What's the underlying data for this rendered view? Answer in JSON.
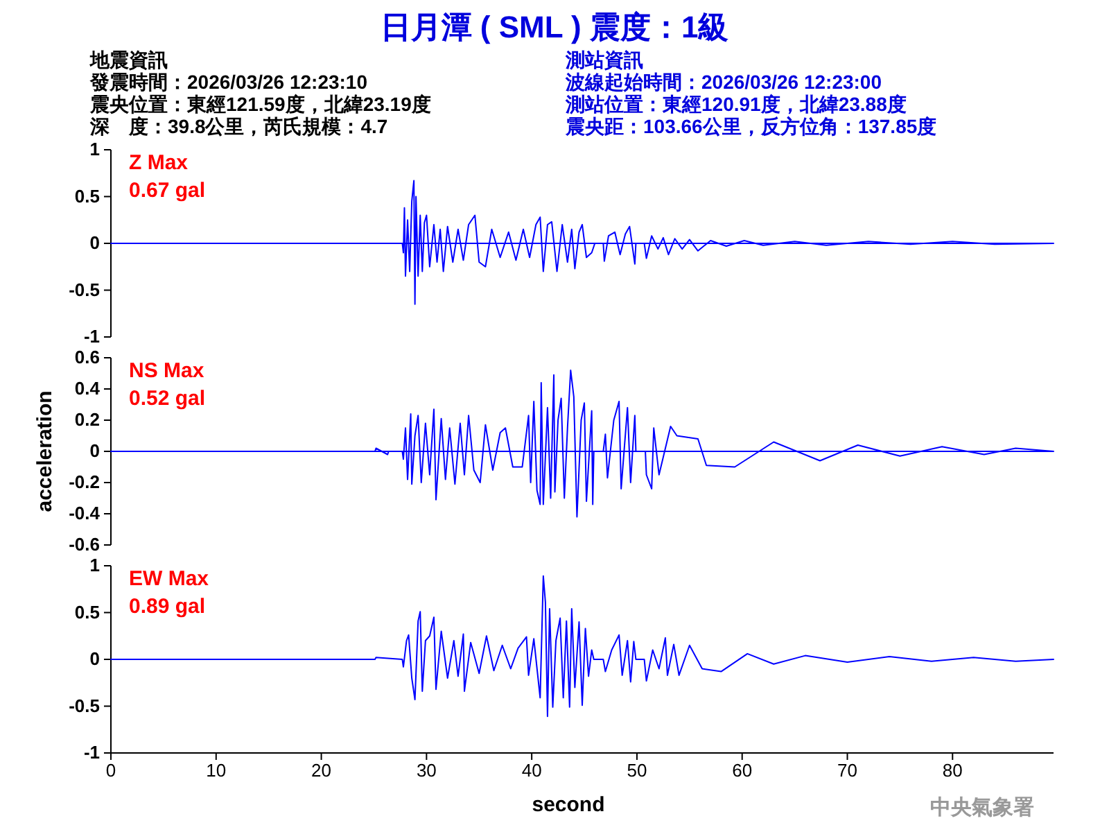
{
  "chart_data": [
    {
      "type": "line",
      "title": "日月潭 ( SML ) 震度：1級",
      "annotations": [
        "Z Max",
        "0.67 gal",
        "地震資訊",
        "發震時間：2026/03/26 12:23:10",
        "震央位置：東經121.59度，北緯23.19度",
        "深　度：39.8公里，芮氏規模：4.7",
        "測站資訊",
        "波線起始時間：2026/03/26 12:23:00",
        "測站位置：東經120.91度，北緯23.88度",
        "震央距：103.66公里，反方位角：137.85度"
      ],
      "xlim": [
        0,
        89.6
      ],
      "ylim": [
        -1,
        1
      ],
      "yticks": [
        -1,
        -0.5,
        0,
        0.5,
        1
      ],
      "tick_labels": "y",
      "ref_lines": [
        {
          "axis": "y",
          "value": 0,
          "color": "#0000ff"
        }
      ],
      "series": [
        {
          "color": "#0000ff",
          "x": [
            0,
            27.7,
            27.8,
            27.9,
            28.0,
            28.2,
            28.4,
            28.6,
            28.8,
            28.9,
            29.0,
            29.2,
            29.4,
            29.6,
            29.8,
            30.0,
            30.3,
            30.7,
            31.0,
            31.3,
            31.6,
            32.0,
            32.5,
            33.0,
            33.5,
            34.0,
            34.6,
            35.0,
            35.6,
            36.2,
            37.0,
            37.8,
            38.5,
            39.2,
            39.8,
            40.4,
            40.8,
            41.1,
            41.5,
            41.9,
            42.4,
            42.9,
            43.4,
            43.8,
            44.1,
            44.5,
            44.8,
            45.2,
            45.7,
            46.0,
            46.8,
            46.9,
            47.3,
            47.9,
            48.4,
            48.9,
            49.3,
            49.8,
            49.9,
            50.7,
            50.9,
            51.4,
            52.0,
            52.5,
            53.0,
            53.6,
            54.3,
            55.0,
            55.8,
            57,
            58.5,
            60.2,
            62,
            65,
            68,
            72,
            76,
            80,
            84,
            89.6
          ],
          "values": [
            0,
            0,
            -0.1,
            0.38,
            -0.35,
            0.25,
            -0.3,
            0.45,
            0.67,
            -0.65,
            0.5,
            -0.35,
            0.3,
            -0.3,
            0.22,
            0.3,
            -0.25,
            0.2,
            -0.2,
            0.15,
            -0.3,
            0.18,
            -0.2,
            0.15,
            -0.18,
            0.2,
            0.3,
            -0.2,
            -0.25,
            0.15,
            -0.15,
            0.12,
            -0.18,
            0.15,
            -0.15,
            0.2,
            0.28,
            -0.3,
            0.2,
            0.23,
            -0.3,
            0.2,
            -0.2,
            0.15,
            -0.27,
            0.12,
            0.2,
            -0.15,
            -0.1,
            0,
            0,
            -0.19,
            0.08,
            0.12,
            -0.12,
            0.1,
            0.18,
            -0.22,
            0,
            0,
            -0.16,
            0.08,
            -0.06,
            0.06,
            -0.12,
            0.05,
            -0.06,
            0.04,
            -0.08,
            0.03,
            -0.03,
            0.03,
            -0.02,
            0.02,
            -0.02,
            0.02,
            -0.01,
            0.02,
            -0.01,
            0
          ]
        }
      ]
    },
    {
      "type": "line",
      "ylabel": "acceleration",
      "annotations": [
        "NS Max",
        "0.52 gal"
      ],
      "xlim": [
        0,
        89.6
      ],
      "ref_lines": [
        {
          "axis": "y",
          "value": 0,
          "color": "#0000ff"
        }
      ],
      "ylim": [
        -0.6,
        0.6
      ],
      "yticks": [
        -0.6,
        -0.4,
        -0.2,
        0,
        0.2,
        0.4,
        0.6
      ],
      "tick_labels": "y",
      "series": [
        {
          "color": "#0000ff",
          "x": [
            0,
            25.1,
            25.2,
            26.3,
            26.4,
            27.7,
            27.8,
            28.0,
            28.2,
            28.5,
            28.6,
            28.9,
            29.2,
            29.5,
            29.9,
            30.3,
            30.7,
            30.9,
            31.4,
            31.8,
            32.2,
            32.7,
            33.2,
            33.6,
            34.0,
            34.5,
            35.1,
            35.6,
            36.3,
            37.0,
            37.5,
            38.2,
            39.1,
            39.7,
            39.9,
            40.2,
            40.5,
            40.8,
            40.9,
            41.1,
            41.5,
            41.8,
            42.1,
            42.2,
            42.5,
            42.8,
            43.1,
            43.4,
            43.7,
            44.0,
            44.3,
            44.7,
            45.0,
            45.2,
            45.7,
            45.8,
            45.9,
            46.8,
            47.0,
            47.2,
            47.8,
            48.3,
            48.5,
            49.1,
            49.4,
            49.8,
            49.9,
            50.8,
            50.9,
            51.4,
            51.6,
            52.1,
            53.2,
            53.8,
            55.8,
            56.6,
            59.3,
            63,
            67.4,
            71,
            75,
            79,
            83,
            86,
            89.6
          ],
          "values": [
            0,
            0,
            0.02,
            -0.02,
            0,
            0,
            -0.05,
            0.15,
            -0.18,
            0.24,
            -0.21,
            0.1,
            0.23,
            -0.2,
            0.18,
            -0.15,
            0.27,
            -0.31,
            0.21,
            -0.18,
            0.15,
            -0.21,
            0.18,
            -0.15,
            0.23,
            -0.12,
            -0.2,
            0.17,
            -0.12,
            0.12,
            0.15,
            -0.1,
            -0.1,
            0.23,
            -0.2,
            0.32,
            -0.25,
            -0.34,
            0.44,
            -0.34,
            0.28,
            -0.3,
            0.49,
            -0.26,
            0.2,
            0.34,
            -0.3,
            0.15,
            0.52,
            0.35,
            -0.42,
            0.2,
            0.31,
            -0.32,
            0.26,
            -0.34,
            0,
            0,
            0.11,
            -0.17,
            0.2,
            0.32,
            -0.24,
            0.28,
            -0.2,
            0.23,
            0,
            0,
            -0.15,
            -0.24,
            0.15,
            -0.15,
            0.16,
            0.1,
            0.08,
            -0.09,
            -0.1,
            0.06,
            -0.06,
            0.04,
            -0.03,
            0.03,
            -0.02,
            0.02,
            0
          ]
        }
      ]
    },
    {
      "type": "line",
      "xlabel": "second",
      "annotations": [
        "EW Max",
        "0.89 gal",
        "中央氣象署"
      ],
      "xlim": [
        0,
        89.6
      ],
      "xticks": [
        0,
        10,
        20,
        30,
        40,
        50,
        60,
        70,
        80
      ],
      "ylim": [
        -1,
        1
      ],
      "yticks": [
        -1,
        -0.5,
        0,
        0.5,
        1
      ],
      "series": [
        {
          "color": "#0000ff",
          "x": [
            0,
            25.1,
            25.2,
            27.7,
            27.8,
            28.1,
            28.3,
            28.6,
            28.9,
            29.2,
            29.4,
            29.6,
            29.9,
            30.3,
            30.7,
            30.9,
            31.4,
            32.0,
            32.6,
            33.0,
            33.5,
            33.6,
            34.2,
            35.0,
            35.7,
            36.4,
            37.2,
            38.0,
            38.7,
            39.5,
            39.7,
            40.2,
            40.8,
            41.1,
            41.3,
            41.5,
            41.7,
            42.0,
            42.3,
            42.7,
            43.0,
            43.3,
            43.6,
            43.8,
            44.1,
            44.5,
            44.8,
            45.1,
            45.4,
            45.7,
            45.9,
            46.8,
            47.0,
            47.6,
            48.3,
            48.6,
            49.1,
            49.4,
            49.7,
            49.9,
            50.7,
            50.9,
            51.5,
            52.1,
            52.7,
            52.9,
            53.5,
            54.0,
            55.0,
            56.2,
            58.0,
            60.5,
            63,
            66,
            70,
            74,
            78,
            82,
            86,
            89.6
          ],
          "values": [
            0,
            0,
            0.02,
            0,
            -0.08,
            0.2,
            0.26,
            -0.2,
            -0.43,
            0.41,
            0.51,
            -0.34,
            0.2,
            0.25,
            0.45,
            -0.32,
            0.3,
            -0.2,
            0.2,
            -0.18,
            0.27,
            -0.34,
            0.18,
            -0.15,
            0.25,
            -0.12,
            0.15,
            -0.1,
            0.12,
            0.24,
            -0.17,
            0.22,
            -0.41,
            0.89,
            0.61,
            -0.61,
            0.54,
            -0.51,
            0.2,
            0.44,
            -0.41,
            0.41,
            -0.51,
            0.54,
            -0.3,
            0.4,
            -0.49,
            0.33,
            -0.18,
            0.1,
            0,
            0,
            -0.13,
            0.1,
            0.26,
            -0.17,
            0.2,
            -0.24,
            0.19,
            0,
            0,
            -0.23,
            0.1,
            -0.1,
            0.23,
            -0.17,
            0.16,
            -0.17,
            0.15,
            -0.1,
            -0.13,
            0.06,
            -0.05,
            0.04,
            -0.03,
            0.03,
            -0.02,
            0.02,
            -0.02,
            0
          ]
        }
      ]
    }
  ]
}
